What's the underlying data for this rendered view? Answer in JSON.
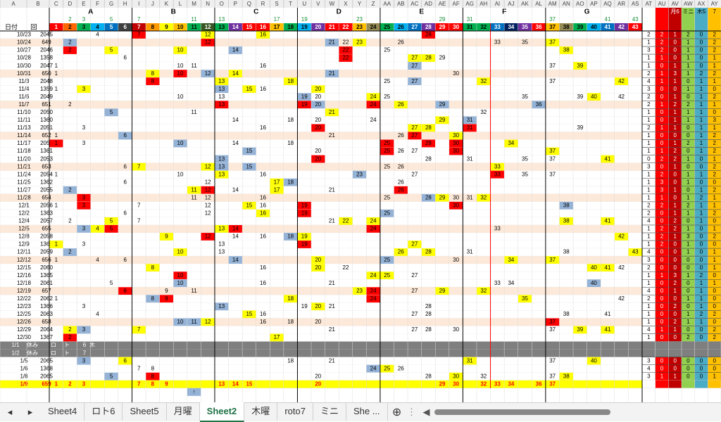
{
  "columns": [
    "A",
    "B",
    "C",
    "D",
    "E",
    "F",
    "G",
    "H",
    "I",
    "J",
    "K",
    "L",
    "M",
    "N",
    "O",
    "P",
    "Q",
    "R",
    "S",
    "T",
    "U",
    "V",
    "W",
    "X",
    "Y",
    "Z",
    "AA",
    "AB",
    "AC",
    "AD",
    "AE",
    "AF",
    "AG",
    "AH",
    "AI",
    "AJ",
    "AK",
    "AL",
    "AM",
    "AN",
    "AO",
    "AP",
    "AQ",
    "AR",
    "AS",
    "AT",
    "AU",
    "AV",
    "AW",
    "AX",
    "AY"
  ],
  "groups": [
    "A",
    "B",
    "C",
    "D",
    "E",
    "F",
    "G"
  ],
  "primes": [
    2,
    3,
    5,
    7,
    11,
    13,
    17,
    19,
    23,
    29,
    31,
    37,
    41,
    43
  ],
  "header": {
    "date": "日付",
    "no": "回",
    "numbers": [
      1,
      2,
      3,
      4,
      5,
      6,
      7,
      8,
      9,
      10,
      11,
      12,
      13,
      14,
      15,
      16,
      17,
      18,
      19,
      20,
      21,
      22,
      23,
      24,
      25,
      26,
      27,
      28,
      29,
      30,
      31,
      32,
      33,
      34,
      35,
      36,
      37,
      38,
      39,
      40,
      41,
      42,
      43
    ],
    "colors": [
      "#ff0000",
      "#ff6600",
      "#00b050",
      "#00b0f0",
      "#0070c0",
      "#404040",
      "#c00000",
      "#ff9900",
      "#ffff00",
      "#ffc000",
      "#00b050",
      "#375623",
      "#00b050",
      "#7030a0",
      "#ff0000",
      "#ff0000",
      "#ffc000",
      "#00b050",
      "#00b0f0",
      "#7030a0",
      "#ff0000",
      "#ff0000",
      "#ffc000",
      "#948a54",
      "#00b050",
      "#00b0f0",
      "#0070c0",
      "#7030a0",
      "#ff0000",
      "#ff0000",
      "#00b050",
      "#00b050",
      "#0070c0",
      "#002060",
      "#7030a0",
      "#ff0000",
      "#ffc000",
      "#948a54",
      "#00b050",
      "#00b0f0",
      "#0070c0",
      "#7030a0",
      "#ff0000"
    ],
    "right": [
      "月6",
      "ミニ",
      "木5",
      "7"
    ]
  },
  "fill_colors": {
    "y": "#ffff00",
    "b": "#95b3d7",
    "r": "#ff0000"
  },
  "stat_colors": [
    "#ffffff",
    "#ff0000",
    "#c00000",
    "#92d050",
    "#4bacc6",
    "#ffc000"
  ],
  "stat_text": [
    "#000000",
    "#ffffff",
    "#ffffff",
    "#000000",
    "#000000",
    "#000000"
  ],
  "rows": [
    {
      "date": "10/23",
      "no": 2045,
      "cells": [
        4,
        7,
        12,
        16,
        28
      ],
      "fills": [
        null,
        "r",
        "y",
        "y",
        "r"
      ],
      "stats": [
        2,
        2,
        1,
        2,
        0,
        2
      ]
    },
    {
      "date": "10/24",
      "no": 649,
      "cells": [
        2,
        12,
        21,
        22,
        23,
        26,
        33,
        35,
        37
      ],
      "fills": [
        "b",
        "r",
        "b",
        null,
        "y",
        null,
        null,
        null,
        "y"
      ],
      "stats": [
        1,
        2,
        0,
        1,
        0,
        2
      ]
    },
    {
      "date": "10/27",
      "no": 2046,
      "cells": [
        2,
        5,
        10,
        14,
        22,
        25,
        38
      ],
      "fills": [
        "r",
        "y",
        "y",
        "b",
        "r",
        null,
        "y"
      ],
      "stats": [
        3,
        2,
        0,
        1,
        0,
        2
      ]
    },
    {
      "date": "10/28",
      "no": 1358,
      "cells": [
        6,
        22,
        27,
        28,
        29
      ],
      "fills": [
        null,
        "r",
        "y",
        "y",
        null
      ],
      "stats": [
        1,
        1,
        0,
        1,
        0,
        1
      ]
    },
    {
      "date": "10/30",
      "no": 2047,
      "cells": [
        1,
        10,
        11,
        16,
        27,
        37,
        39
      ],
      "fills": [
        null,
        null,
        null,
        null,
        "b",
        null,
        "y"
      ],
      "stats": [
        1,
        0,
        1,
        1,
        0,
        1
      ]
    },
    {
      "date": "10/31",
      "no": 650,
      "cells": [
        1,
        8,
        10,
        12,
        14,
        21,
        30
      ],
      "fills": [
        null,
        "y",
        "r",
        "b",
        "y",
        "b",
        null
      ],
      "stats": [
        2,
        1,
        3,
        1,
        2,
        2
      ]
    },
    {
      "date": "11/3",
      "no": 2048,
      "cells": [
        8,
        13,
        18,
        25,
        27,
        32,
        37,
        42
      ],
      "fills": [
        "r",
        "y",
        "y",
        null,
        "b",
        "y",
        null,
        "y"
      ],
      "stats": [
        4,
        1,
        1,
        0,
        1,
        1
      ]
    },
    {
      "date": "11/4",
      "no": 1359,
      "cells": [
        1,
        3,
        13,
        15,
        16,
        20
      ],
      "fills": [
        null,
        "y",
        "b",
        "y",
        null,
        "y"
      ],
      "stats": [
        3,
        0,
        0,
        1,
        1,
        0
      ]
    },
    {
      "date": "11/6",
      "no": 2049,
      "cells": [
        10,
        13,
        19,
        20,
        24,
        25,
        35,
        39,
        40,
        42
      ],
      "fills": [
        null,
        null,
        "b",
        null,
        "y",
        null,
        null,
        null,
        "y",
        null
      ],
      "stats": [
        2,
        0,
        1,
        0,
        1,
        2
      ]
    },
    {
      "date": "11/7",
      "no": 651,
      "cells": [
        2,
        13,
        19,
        20,
        24,
        26,
        29,
        36
      ],
      "fills": [
        null,
        "r",
        "r",
        "b",
        "r",
        "y",
        "b",
        "b"
      ],
      "stats": [
        2,
        1,
        2,
        2,
        1,
        1
      ]
    },
    {
      "date": "11/10",
      "no": 2050,
      "cells": [
        5,
        11,
        21,
        32
      ],
      "fills": [
        "b",
        null,
        "y",
        null
      ],
      "stats": [
        1,
        0,
        1,
        1,
        1,
        0
      ]
    },
    {
      "date": "11/11",
      "no": 1360,
      "cells": [
        14,
        18,
        20,
        24,
        29,
        31
      ],
      "fills": [
        null,
        null,
        null,
        null,
        "y",
        "b"
      ],
      "stats": [
        1,
        0,
        1,
        1,
        1,
        3
      ]
    },
    {
      "date": "11/13",
      "no": 2051,
      "cells": [
        3,
        16,
        20,
        27,
        28,
        31,
        39
      ],
      "fills": [
        null,
        null,
        "r",
        "y",
        "y",
        "r",
        null
      ],
      "stats": [
        2,
        1,
        1,
        0,
        1,
        1
      ]
    },
    {
      "date": "11/14",
      "no": 652,
      "cells": [
        1,
        6,
        21,
        26,
        27,
        30
      ],
      "fills": [
        null,
        "b",
        null,
        null,
        "r",
        "y"
      ],
      "stats": [
        1,
        0,
        0,
        0,
        1,
        2
      ]
    },
    {
      "date": "11/17",
      "no": 2052,
      "cells": [
        1,
        3,
        10,
        14,
        18,
        25,
        28,
        30,
        34
      ],
      "fills": [
        "r",
        null,
        "b",
        null,
        null,
        "r",
        "r",
        "r",
        "y"
      ],
      "stats": [
        1,
        0,
        1,
        2,
        1,
        2
      ]
    },
    {
      "date": "11/18",
      "no": 1361,
      "cells": [
        15,
        20,
        25,
        26,
        27,
        30,
        37
      ],
      "fills": [
        "b",
        null,
        "r",
        null,
        null,
        "r",
        "y"
      ],
      "stats": [
        1,
        1,
        2,
        0,
        1,
        2
      ]
    },
    {
      "date": "11/20",
      "no": 2053,
      "cells": [
        13,
        20,
        28,
        31,
        35,
        37,
        41
      ],
      "fills": [
        "b",
        "r",
        null,
        null,
        null,
        null,
        "y"
      ],
      "stats": [
        0,
        2,
        2,
        1,
        0,
        1
      ]
    },
    {
      "date": "11/21",
      "no": 653,
      "cells": [
        6,
        7,
        12,
        13,
        15,
        25,
        26,
        33
      ],
      "fills": [
        null,
        "y",
        "y",
        "b",
        "b",
        null,
        null,
        "y"
      ],
      "stats": [
        3,
        0,
        1,
        0,
        0,
        2
      ]
    },
    {
      "date": "11/24",
      "no": 2054,
      "cells": [
        1,
        10,
        13,
        16,
        23,
        27,
        33,
        35,
        37
      ],
      "fills": [
        null,
        null,
        "y",
        null,
        "b",
        null,
        "r",
        null,
        null
      ],
      "stats": [
        1,
        2,
        0,
        1,
        1,
        2
      ]
    },
    {
      "date": "11/25",
      "no": 1362,
      "cells": [
        6,
        12,
        17,
        18,
        26
      ],
      "fills": [
        null,
        null,
        "y",
        "b",
        null
      ],
      "stats": [
        1,
        3,
        0,
        1,
        0,
        0
      ]
    },
    {
      "date": "11/27",
      "no": 2055,
      "cells": [
        2,
        11,
        12,
        14,
        17,
        21,
        26
      ],
      "fills": [
        "b",
        "y",
        "r",
        null,
        "y",
        null,
        "r"
      ],
      "stats": [
        1,
        3,
        1,
        0,
        1,
        2
      ]
    },
    {
      "date": "11/28",
      "no": 654,
      "cells": [
        3,
        11,
        12,
        16,
        25,
        28,
        29,
        30,
        31,
        32
      ],
      "fills": [
        "r",
        null,
        null,
        null,
        null,
        "b",
        "y",
        null,
        null,
        "y"
      ],
      "stats": [
        1,
        1,
        0,
        1,
        2,
        1
      ]
    },
    {
      "date": "12/1",
      "no": 2056,
      "cells": [
        1,
        3,
        7,
        12,
        15,
        16,
        19,
        30,
        38
      ],
      "fills": [
        null,
        "r",
        null,
        null,
        "y",
        null,
        "r",
        "r",
        "b"
      ],
      "stats": [
        2,
        2,
        1,
        2,
        1,
        1
      ]
    },
    {
      "date": "12/2",
      "no": 1363,
      "cells": [
        6,
        12,
        16,
        19,
        25
      ],
      "fills": [
        null,
        null,
        "y",
        "r",
        "b"
      ],
      "stats": [
        2,
        0,
        1,
        1,
        1,
        2
      ]
    },
    {
      "date": "12/4",
      "no": 2057,
      "cells": [
        2,
        5,
        7,
        21,
        22,
        24,
        38,
        41
      ],
      "fills": [
        null,
        "y",
        null,
        null,
        "y",
        "y",
        "y",
        "y"
      ],
      "stats": [
        4,
        0,
        2,
        0,
        1,
        0
      ]
    },
    {
      "date": "12/5",
      "no": 655,
      "cells": [
        3,
        4,
        5,
        13,
        14,
        24,
        33
      ],
      "fills": [
        "b",
        "y",
        "r",
        "y",
        "r",
        "r",
        null
      ],
      "stats": [
        1,
        2,
        2,
        1,
        0,
        1
      ]
    },
    {
      "date": "12/8",
      "no": 2058,
      "cells": [
        9,
        12,
        14,
        16,
        18,
        19,
        42
      ],
      "fills": [
        "y",
        "r",
        null,
        null,
        "b",
        "y",
        "y"
      ],
      "stats": [
        1,
        2,
        1,
        3,
        0,
        2
      ]
    },
    {
      "date": "12/9",
      "no": 1364,
      "cells": [
        1,
        3,
        13,
        19,
        27
      ],
      "fills": [
        "y",
        null,
        null,
        "r",
        "y"
      ],
      "stats": [
        1,
        2,
        0,
        1,
        0,
        0
      ]
    },
    {
      "date": "12/11",
      "no": 2059,
      "cells": [
        2,
        10,
        13,
        26,
        28,
        31,
        38,
        43
      ],
      "fills": [
        "b",
        "y",
        null,
        "y",
        "y",
        null,
        null,
        "y"
      ],
      "stats": [
        4,
        0,
        0,
        1,
        0,
        1
      ]
    },
    {
      "date": "12/12",
      "no": 656,
      "cells": [
        1,
        4,
        6,
        14,
        20,
        25,
        30,
        34,
        37
      ],
      "fills": [
        null,
        null,
        null,
        "b",
        "y",
        "b",
        null,
        "y",
        "y"
      ],
      "stats": [
        3,
        0,
        0,
        0,
        0,
        1
      ]
    },
    {
      "date": "12/15",
      "no": 2060,
      "cells": [
        8,
        16,
        20,
        22,
        40,
        41,
        42
      ],
      "fills": [
        "y",
        null,
        "y",
        null,
        "y",
        "y",
        null
      ],
      "stats": [
        2,
        0,
        0,
        0,
        0,
        1
      ]
    },
    {
      "date": "12/16",
      "no": 1365,
      "cells": [
        10,
        24,
        25,
        27
      ],
      "fills": [
        "r",
        "y",
        "y",
        null
      ],
      "stats": [
        1,
        1,
        3,
        1,
        2,
        0
      ]
    },
    {
      "date": "12/18",
      "no": 2061,
      "cells": [
        5,
        10,
        16,
        21,
        33,
        34,
        40
      ],
      "fills": [
        null,
        "b",
        null,
        null,
        null,
        null,
        "b"
      ],
      "stats": [
        1,
        0,
        2,
        0,
        1,
        1
      ]
    },
    {
      "date": "12/19",
      "no": 657,
      "cells": [
        6,
        9,
        11,
        23,
        24,
        27,
        29,
        32
      ],
      "fills": [
        "r",
        null,
        null,
        "y",
        "r",
        null,
        "y",
        "y"
      ],
      "stats": [
        4,
        0,
        1,
        0,
        1,
        0
      ]
    },
    {
      "date": "12/22",
      "no": 2062,
      "cells": [
        1,
        8,
        9,
        18,
        24,
        35,
        42
      ],
      "fills": [
        null,
        "b",
        "r",
        "y",
        "r",
        "y",
        null
      ],
      "stats": [
        2,
        0,
        0,
        1,
        1,
        0
      ]
    },
    {
      "date": "12/23",
      "no": 1366,
      "cells": [
        3,
        13,
        19,
        20,
        21,
        28
      ],
      "fills": [
        null,
        "b",
        null,
        "y",
        null,
        null
      ],
      "stats": [
        1,
        0,
        2,
        0,
        1,
        0
      ]
    },
    {
      "date": "12/25",
      "no": 2063,
      "cells": [
        4,
        15,
        16,
        27,
        28,
        38,
        41
      ],
      "fills": [
        null,
        "y",
        null,
        null,
        null,
        null,
        null
      ],
      "stats": [
        1,
        0,
        0,
        1,
        2,
        2
      ]
    },
    {
      "date": "12/26",
      "no": 658,
      "cells": [
        10,
        11,
        12,
        16,
        18,
        20,
        37
      ],
      "fills": [
        "b",
        "b",
        "y",
        null,
        null,
        null,
        "r"
      ],
      "stats": [
        1,
        0,
        2,
        1,
        1,
        0
      ]
    },
    {
      "date": "12/29",
      "no": 2064,
      "cells": [
        2,
        3,
        7,
        21,
        27,
        28,
        30,
        37,
        39,
        41
      ],
      "fills": [
        "y",
        "b",
        "y",
        null,
        null,
        null,
        null,
        null,
        "y",
        "y"
      ],
      "stats": [
        4,
        1,
        1,
        0,
        0,
        2
      ]
    },
    {
      "date": "12/30",
      "no": 1367,
      "cells": [
        2,
        17
      ],
      "fills": [
        "r",
        "y"
      ],
      "stats": [
        1,
        0,
        0,
        2,
        0,
        2
      ]
    },
    {
      "date": "1/1",
      "note": "休み",
      "marks": [
        "ロ",
        "ト",
        "6",
        "木"
      ]
    },
    {
      "date": "1/2",
      "note": "休み",
      "marks": [
        "ロ",
        "ト",
        "7"
      ]
    },
    {
      "date": "1/5",
      "no": 2065,
      "cells": [
        3,
        6,
        18,
        21,
        31,
        37,
        40
      ],
      "fills": [
        "b",
        "y",
        null,
        null,
        "y",
        null,
        "y"
      ],
      "stats": [
        3,
        0,
        0,
        0,
        0,
        0
      ]
    },
    {
      "date": "1/6",
      "no": 1368,
      "cells": [
        7,
        8,
        24,
        25,
        26
      ],
      "fills": [
        null,
        null,
        "b",
        "y",
        null
      ],
      "stats": [
        4,
        0,
        0,
        0,
        0,
        0
      ]
    },
    {
      "date": "1/8",
      "no": 2065,
      "cells": [
        5,
        8,
        20,
        28,
        30,
        32,
        37,
        38
      ],
      "fills": [
        "b",
        "r",
        null,
        null,
        "y",
        null,
        null,
        "y"
      ],
      "stats": [
        3,
        1,
        1,
        0,
        0,
        1
      ]
    },
    {
      "date": "1/9",
      "no": 659,
      "cells": [
        1,
        2,
        3,
        7,
        8,
        9,
        13,
        14,
        15,
        20,
        29,
        30,
        32,
        33,
        34,
        36,
        37
      ],
      "bg": "#ffff00",
      "fg": "#ff0000"
    }
  ],
  "arrow": "↑",
  "tabs": [
    "Sheet4",
    "ロト6",
    "Sheet5",
    "月曜",
    "Sheet2",
    "木曜",
    "roto7",
    "ミニ",
    "She ..."
  ],
  "active_tab": "Sheet2"
}
